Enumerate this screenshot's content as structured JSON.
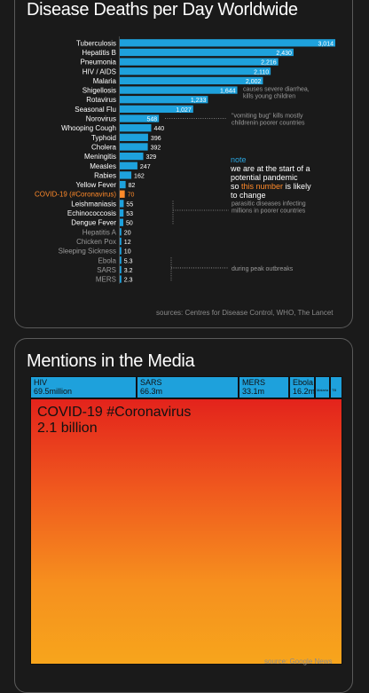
{
  "chart1": {
    "title": "Disease Deaths per Day Worldwide",
    "source": "sources: Centres for Disease Control, WHO, The Lancet",
    "note_heading": "note",
    "note_lines": [
      "we are at the start of a",
      "potential pandemic",
      "is likely",
      "to change"
    ],
    "note_so": "so ",
    "note_highlight": "this number",
    "annotations": {
      "shigellosis": [
        "causes severe diarrhea,",
        "kills young children"
      ],
      "norovirus": [
        "\"vomiting bug\" kills mostly",
        "childrenin poorer countries"
      ],
      "parasitic": [
        "parasitic diseases infecting",
        "millions in poorer countries"
      ],
      "outbreaks": [
        "during peak outbreaks"
      ]
    }
  },
  "chart_data": [
    {
      "type": "bar",
      "orientation": "horizontal",
      "title": "Disease Deaths per Day Worldwide",
      "categories": [
        "Tuberculosis",
        "Hepatitis B",
        "Pneumonia",
        "HIV / AIDS",
        "Malaria",
        "Shigellosis",
        "Rotavirus",
        "Seasonal Flu",
        "Norovirus",
        "Whooping Cough",
        "Typhoid",
        "Cholera",
        "Meningitis",
        "Measles",
        "Rabies",
        "Yellow Fever",
        "COVID-19 (#Coronavirus)",
        "Leishmaniasis",
        "Echinococcosis",
        "Dengue Fever",
        "Hepatitis A",
        "Chicken Pox",
        "Sleeping Sickness",
        "Ebola",
        "SARS",
        "MERS"
      ],
      "value_labels": [
        "3,014",
        "2,430",
        "2,216",
        "2,110",
        "2,002",
        "1,644",
        "1,233",
        "1,027",
        "548",
        "440",
        "396",
        "392",
        "329",
        "247",
        "162",
        "82",
        "70",
        "55",
        "53",
        "50",
        "20",
        "12",
        "10",
        "5.3",
        "3.2",
        "2.3"
      ],
      "values": [
        3014,
        2430,
        2216,
        2110,
        2002,
        1644,
        1233,
        1027,
        548,
        440,
        396,
        392,
        329,
        247,
        162,
        82,
        70,
        55,
        53,
        50,
        20,
        12,
        10,
        5.3,
        3.2,
        2.3
      ],
      "colors": {
        "bar": "#1ea1dc",
        "highlight": "#ff8a2a",
        "small_label": "#9a9a9a"
      }
    },
    {
      "type": "treemap",
      "title": "Mentions in the Media",
      "source": "source: Google News",
      "items": [
        {
          "name": "COVID-19 #Coronavirus",
          "label": "2.1 billion",
          "value": 2100000000
        },
        {
          "name": "HIV",
          "label": "69.5million",
          "value": 69500000
        },
        {
          "name": "SARS",
          "label": "66.3m",
          "value": 66300000
        },
        {
          "name": "MERS",
          "label": "33.1m",
          "value": 33100000
        },
        {
          "name": "Ebola",
          "label": "16.2m",
          "value": 16200000
        },
        {
          "name": "Malaria",
          "label": "",
          "value": 3000000
        },
        {
          "name": "TB",
          "label": "",
          "value": 2000000
        }
      ],
      "colors": {
        "small": "#1ea1dc",
        "big_top": "#e3231c",
        "big_bottom": "#f7a51c"
      }
    }
  ]
}
